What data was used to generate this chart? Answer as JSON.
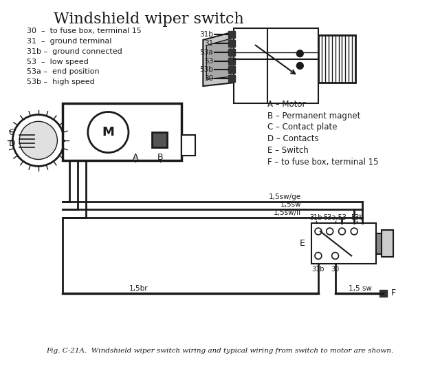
{
  "title": "Windshield wiper switch",
  "legend_items": [
    "30  –  to fuse box, terminal 15",
    "31  –  ground terminal",
    "31b –  ground connected",
    "53  –  low speed",
    "53a –  end position",
    "53b –  high speed"
  ],
  "bottom_legend": [
    "A – Motor",
    "B – Permanent magnet",
    "C – Contact plate",
    "D – Contacts",
    "E – Switch",
    "F – to fuse box, terminal 15"
  ],
  "caption": "Fig. C-21A.  Windshield wiper switch wiring and typical wiring from switch to motor are shown.",
  "line_color": "#1a1a1a",
  "text_color": "#1a1a1a"
}
